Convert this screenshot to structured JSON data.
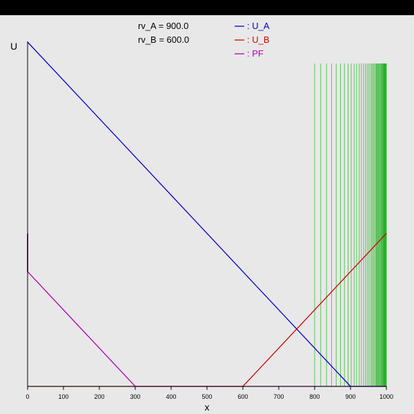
{
  "chart_data": {
    "type": "line",
    "xlabel": "x",
    "ylabel": "U",
    "xlim": [
      0,
      1000
    ],
    "x_ticks": [
      "0",
      "100",
      "200",
      "300",
      "400",
      "500",
      "600",
      "700",
      "800",
      "900",
      "1000"
    ],
    "params": [
      "rv_A = 900.0",
      "rv_B = 600.0"
    ],
    "series": [
      {
        "name": ": U_A",
        "color": "#0000cc",
        "points": [
          [
            0,
            900
          ],
          [
            900,
            0
          ],
          [
            1000,
            0
          ]
        ]
      },
      {
        "name": ": U_B",
        "color": "#cc0000",
        "points": [
          [
            0,
            0
          ],
          [
            600,
            0
          ],
          [
            1000,
            400
          ]
        ]
      },
      {
        "name": ": PF",
        "color": "#b000b0",
        "points": [
          [
            0,
            300
          ],
          [
            300,
            0
          ],
          [
            1000,
            0
          ]
        ]
      }
    ],
    "green_lines": {
      "color": "#00aa00",
      "x_values": [
        800,
        817,
        833,
        847,
        860,
        872,
        883,
        893,
        902,
        910,
        917,
        924,
        930,
        936,
        941,
        946,
        950,
        954,
        958,
        961,
        964,
        967,
        970,
        972,
        974,
        976,
        978,
        980,
        982,
        984,
        985,
        987,
        988,
        989,
        991,
        992,
        993,
        994,
        995,
        996,
        997,
        998,
        999,
        1000
      ]
    }
  }
}
